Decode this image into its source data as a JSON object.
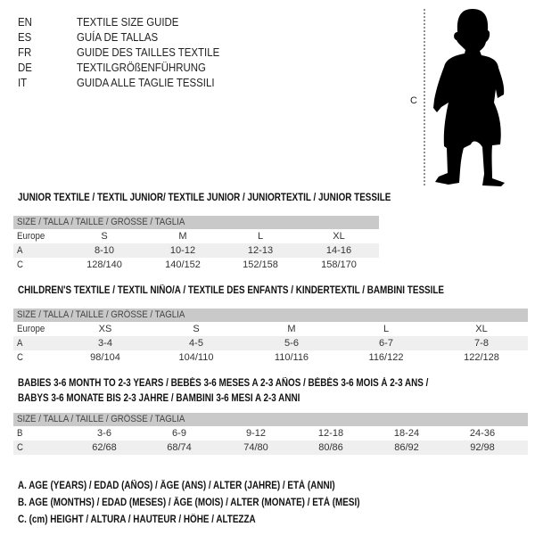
{
  "languages": [
    {
      "code": "EN",
      "title": "TEXTILE SIZE GUIDE"
    },
    {
      "code": "ES",
      "title": "GUÍA DE TALLAS"
    },
    {
      "code": "FR",
      "title": "GUIDE DES TAILLES TEXTILE"
    },
    {
      "code": "DE",
      "title": "TEXTILGRÖßENFÜHRUNG"
    },
    {
      "code": "IT",
      "title": "GUIDA ALLE TAGLIE TESSILI"
    }
  ],
  "figure": {
    "measure_label": "C",
    "icon": "child-silhouette"
  },
  "junior": {
    "title": "JUNIOR TEXTILE / TEXTIL JUNIOR/ TEXTILE JUNIOR / JUNIORTEXTIL / JUNIOR TESSILE",
    "header": "SIZE / TALLA / TAILLE / GRÖSSE / TAGLIA",
    "rows": [
      {
        "label": "Europe",
        "values": [
          "S",
          "M",
          "L",
          "XL"
        ]
      },
      {
        "label": "A",
        "values": [
          "8-10",
          "10-12",
          "12-13",
          "14-16"
        ]
      },
      {
        "label": "C",
        "values": [
          "128/140",
          "140/152",
          "152/158",
          "158/170"
        ]
      }
    ]
  },
  "children": {
    "title": "CHILDREN'S TEXTILE / TEXTIL NIÑO/A / TEXTILE DES ENFANTS / KINDERTEXTIL / BAMBINI TESSILE",
    "header": "SIZE / TALLA / TAILLE / GRÖSSE / TAGLIA",
    "rows": [
      {
        "label": "Europe",
        "values": [
          "XS",
          "S",
          "M",
          "L",
          "XL"
        ]
      },
      {
        "label": "A",
        "values": [
          "3-4",
          "4-5",
          "5-6",
          "6-7",
          "7-8"
        ]
      },
      {
        "label": "C",
        "values": [
          "98/104",
          "104/110",
          "110/116",
          "116/122",
          "122/128"
        ]
      }
    ]
  },
  "babies": {
    "title_line1": "BABIES 3-6 MONTH TO 2-3 YEARS / BEBÉS 3-6 MESES A 2-3 AÑOS / BÉBÉS 3-6 MOIS À 2-3 ANS /",
    "title_line2": "BABYS 3-6 MONATE BIS 2-3 JAHRE / BAMBINI 3-6 MESI A 2-3 ANNI",
    "header": "SIZE / TALLA / TAILLE / GRÖSSE / TAGLIA",
    "rows": [
      {
        "label": "B",
        "values": [
          "3-6",
          "6-9",
          "9-12",
          "12-18",
          "18-24",
          "24-36"
        ]
      },
      {
        "label": "C",
        "values": [
          "62/68",
          "68/74",
          "74/80",
          "80/86",
          "86/92",
          "92/98"
        ]
      }
    ]
  },
  "legend": [
    "A. AGE (YEARS) / EDAD (AÑOS) / ÂGE (ANS) / ALTER (JAHRE) / ETÀ (ANNI)",
    "B. AGE (MONTHS) / EDAD (MESES) / ÂGE (MOIS) / ALTER (MONATE) / ETÀ (MESI)",
    "C. (cm) HEIGHT / ALTURA / HAUTEUR / HÖHE / ALTEZZA"
  ]
}
